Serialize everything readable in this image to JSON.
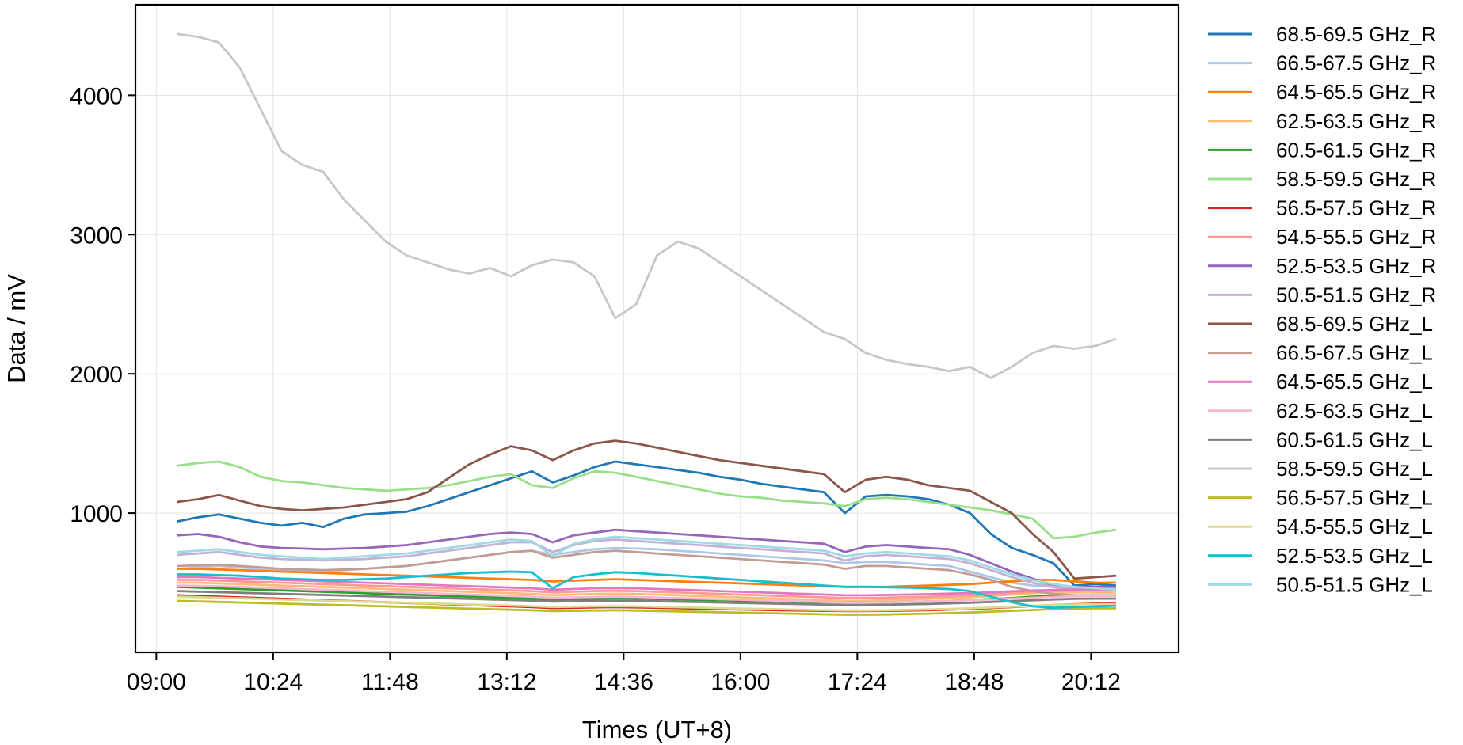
{
  "chart_data": {
    "type": "line",
    "title": "",
    "xlabel": "Times (UT+8)",
    "ylabel": "Data / mV",
    "x_ticks": [
      "09:00",
      "10:24",
      "11:48",
      "13:12",
      "14:36",
      "16:00",
      "17:24",
      "18:48",
      "20:12"
    ],
    "y_ticks": [
      "1000",
      "2000",
      "3000",
      "4000"
    ],
    "y_tick_values": [
      1000,
      2000,
      3000,
      4000
    ],
    "xlim": [
      "08:45",
      "21:15"
    ],
    "ylim": [
      0,
      4650
    ],
    "grid": true,
    "legend": "outside-right",
    "x": [
      "09:15",
      "09:30",
      "09:45",
      "10:00",
      "10:15",
      "10:30",
      "10:45",
      "11:00",
      "11:15",
      "11:30",
      "11:45",
      "12:00",
      "12:15",
      "12:30",
      "12:45",
      "13:00",
      "13:15",
      "13:30",
      "13:45",
      "14:00",
      "14:15",
      "14:30",
      "14:45",
      "15:00",
      "15:15",
      "15:30",
      "15:45",
      "16:00",
      "16:15",
      "16:30",
      "16:45",
      "17:00",
      "17:15",
      "17:30",
      "17:45",
      "18:00",
      "18:15",
      "18:30",
      "18:45",
      "19:00",
      "19:15",
      "19:30",
      "19:45",
      "20:00",
      "20:15",
      "20:30"
    ],
    "series": [
      {
        "name": "68.5-69.5 GHz_R",
        "color": "#1f77b4",
        "values": [
          940,
          970,
          990,
          960,
          930,
          910,
          930,
          900,
          960,
          990,
          1000,
          1010,
          1050,
          1100,
          1150,
          1200,
          1250,
          1300,
          1220,
          1270,
          1330,
          1370,
          1350,
          1330,
          1310,
          1290,
          1260,
          1240,
          1210,
          1190,
          1170,
          1150,
          1000,
          1120,
          1130,
          1120,
          1100,
          1060,
          1000,
          850,
          750,
          700,
          640,
          480,
          490,
          480
        ]
      },
      {
        "name": "66.5-67.5 GHz_R",
        "color": "#aec7e8",
        "values": [
          600,
          610,
          620,
          610,
          600,
          590,
          590,
          580,
          590,
          600,
          610,
          620,
          640,
          660,
          680,
          700,
          720,
          730,
          700,
          720,
          740,
          750,
          745,
          740,
          730,
          720,
          710,
          700,
          690,
          680,
          670,
          660,
          640,
          650,
          650,
          640,
          630,
          620,
          580,
          540,
          500,
          480,
          470,
          440,
          430,
          430
        ]
      },
      {
        "name": "64.5-65.5 GHz_R",
        "color": "#ff7f0e",
        "values": [
          600,
          600,
          595,
          590,
          585,
          580,
          575,
          570,
          565,
          560,
          555,
          550,
          545,
          540,
          535,
          530,
          525,
          520,
          510,
          515,
          520,
          525,
          520,
          515,
          510,
          505,
          500,
          495,
          490,
          485,
          480,
          475,
          470,
          470,
          470,
          475,
          480,
          485,
          490,
          500,
          510,
          520,
          520,
          510,
          500,
          500
        ]
      },
      {
        "name": "62.5-63.5 GHz_R",
        "color": "#ffbb78",
        "values": [
          500,
          500,
          495,
          490,
          485,
          480,
          475,
          470,
          465,
          460,
          455,
          450,
          445,
          440,
          435,
          430,
          425,
          420,
          410,
          415,
          420,
          422,
          420,
          415,
          410,
          405,
          400,
          395,
          390,
          385,
          380,
          375,
          370,
          370,
          375,
          380,
          385,
          390,
          395,
          405,
          415,
          425,
          430,
          430,
          430,
          430
        ]
      },
      {
        "name": "60.5-61.5 GHz_R",
        "color": "#2ca02c",
        "values": [
          470,
          465,
          460,
          455,
          450,
          445,
          440,
          435,
          430,
          425,
          420,
          415,
          410,
          405,
          400,
          395,
          390,
          385,
          380,
          382,
          385,
          388,
          386,
          383,
          380,
          377,
          374,
          371,
          368,
          365,
          362,
          360,
          358,
          358,
          360,
          363,
          366,
          370,
          375,
          382,
          390,
          400,
          405,
          408,
          410,
          410
        ]
      },
      {
        "name": "58.5-59.5 GHz_R",
        "color": "#98df8a",
        "values": [
          1340,
          1360,
          1370,
          1330,
          1260,
          1230,
          1220,
          1200,
          1180,
          1170,
          1160,
          1170,
          1180,
          1200,
          1230,
          1260,
          1280,
          1200,
          1180,
          1250,
          1300,
          1290,
          1260,
          1230,
          1200,
          1170,
          1140,
          1120,
          1110,
          1090,
          1080,
          1070,
          1050,
          1100,
          1110,
          1100,
          1080,
          1060,
          1040,
          1020,
          990,
          960,
          820,
          830,
          860,
          880
        ]
      },
      {
        "name": "56.5-57.5 GHz_R",
        "color": "#d62728",
        "values": [
          410,
          405,
          400,
          395,
          390,
          385,
          380,
          375,
          370,
          365,
          360,
          355,
          350,
          345,
          340,
          335,
          330,
          325,
          318,
          320,
          323,
          325,
          323,
          320,
          317,
          314,
          311,
          308,
          305,
          302,
          300,
          298,
          296,
          296,
          298,
          300,
          303,
          307,
          312,
          318,
          325,
          333,
          340,
          345,
          350,
          350
        ]
      },
      {
        "name": "54.5-55.5 GHz_R",
        "color": "#ff9896",
        "values": [
          520,
          520,
          515,
          510,
          505,
          500,
          495,
          490,
          485,
          480,
          475,
          470,
          465,
          460,
          455,
          450,
          445,
          440,
          430,
          435,
          440,
          442,
          440,
          435,
          430,
          425,
          420,
          415,
          410,
          405,
          400,
          395,
          390,
          390,
          393,
          396,
          400,
          405,
          410,
          418,
          426,
          434,
          440,
          444,
          446,
          446
        ]
      },
      {
        "name": "52.5-53.5 GHz_R",
        "color": "#9467bd",
        "values": [
          840,
          850,
          830,
          790,
          760,
          750,
          745,
          740,
          745,
          750,
          760,
          770,
          790,
          810,
          830,
          850,
          860,
          850,
          790,
          840,
          860,
          880,
          870,
          860,
          850,
          840,
          830,
          820,
          810,
          800,
          790,
          780,
          720,
          760,
          770,
          760,
          750,
          740,
          700,
          640,
          580,
          530,
          480,
          470,
          470,
          470
        ]
      },
      {
        "name": "50.5-51.5 GHz_R",
        "color": "#c5b0d5",
        "values": [
          700,
          710,
          720,
          700,
          680,
          670,
          665,
          660,
          665,
          670,
          680,
          690,
          710,
          730,
          750,
          770,
          790,
          790,
          720,
          770,
          800,
          810,
          800,
          790,
          780,
          770,
          760,
          750,
          740,
          730,
          720,
          710,
          660,
          690,
          700,
          690,
          680,
          670,
          640,
          590,
          540,
          500,
          470,
          460,
          455,
          455
        ]
      },
      {
        "name": "68.5-69.5 GHz_L",
        "color": "#8c564b",
        "values": [
          1080,
          1100,
          1130,
          1090,
          1050,
          1030,
          1020,
          1030,
          1040,
          1060,
          1080,
          1100,
          1150,
          1250,
          1350,
          1420,
          1480,
          1450,
          1380,
          1450,
          1500,
          1520,
          1500,
          1470,
          1440,
          1410,
          1380,
          1360,
          1340,
          1320,
          1300,
          1280,
          1150,
          1240,
          1260,
          1240,
          1200,
          1180,
          1160,
          1080,
          1000,
          850,
          720,
          530,
          540,
          550
        ]
      },
      {
        "name": "66.5-67.5 GHz_L",
        "color": "#c49c94",
        "values": [
          620,
          625,
          630,
          620,
          610,
          600,
          595,
          590,
          595,
          600,
          610,
          620,
          640,
          660,
          680,
          700,
          720,
          730,
          680,
          700,
          720,
          730,
          720,
          710,
          700,
          690,
          680,
          670,
          660,
          650,
          640,
          630,
          600,
          620,
          620,
          610,
          600,
          590,
          560,
          520,
          470,
          440,
          420,
          410,
          410,
          410
        ]
      },
      {
        "name": "64.5-65.5 GHz_L",
        "color": "#e377c2",
        "values": [
          540,
          540,
          535,
          530,
          525,
          520,
          515,
          510,
          505,
          500,
          495,
          490,
          485,
          480,
          475,
          470,
          465,
          460,
          450,
          455,
          460,
          462,
          460,
          455,
          450,
          445,
          440,
          435,
          430,
          425,
          420,
          415,
          410,
          410,
          412,
          415,
          418,
          422,
          426,
          432,
          438,
          444,
          448,
          450,
          450,
          450
        ]
      },
      {
        "name": "62.5-63.5 GHz_L",
        "color": "#f7b6d2",
        "values": [
          480,
          478,
          475,
          470,
          465,
          460,
          455,
          450,
          445,
          440,
          435,
          430,
          425,
          420,
          415,
          410,
          405,
          400,
          392,
          395,
          398,
          400,
          398,
          394,
          390,
          386,
          382,
          378,
          374,
          370,
          366,
          362,
          358,
          358,
          360,
          363,
          366,
          370,
          374,
          380,
          386,
          392,
          398,
          402,
          405,
          405
        ]
      },
      {
        "name": "60.5-61.5 GHz_L",
        "color": "#7f7f7f",
        "values": [
          440,
          436,
          432,
          428,
          424,
          420,
          416,
          412,
          408,
          404,
          400,
          396,
          392,
          388,
          384,
          380,
          376,
          372,
          365,
          367,
          370,
          372,
          370,
          367,
          364,
          361,
          358,
          355,
          352,
          349,
          346,
          343,
          340,
          340,
          342,
          345,
          348,
          352,
          356,
          362,
          368,
          374,
          380,
          384,
          386,
          386
        ]
      },
      {
        "name": "58.5-59.5 GHz_L",
        "color": "#c7c7c7",
        "values": [
          4440,
          4420,
          4380,
          4200,
          3900,
          3600,
          3500,
          3450,
          3250,
          3100,
          2950,
          2850,
          2800,
          2750,
          2720,
          2760,
          2700,
          2780,
          2820,
          2800,
          2700,
          2400,
          2500,
          2850,
          2950,
          2900,
          2800,
          2700,
          2600,
          2500,
          2400,
          2300,
          2250,
          2150,
          2100,
          2070,
          2050,
          2020,
          2050,
          1970,
          2050,
          2150,
          2200,
          2180,
          2200,
          2250
        ]
      },
      {
        "name": "56.5-57.5 GHz_L",
        "color": "#bcbd22",
        "values": [
          370,
          366,
          362,
          358,
          354,
          350,
          346,
          342,
          338,
          334,
          330,
          326,
          322,
          318,
          314,
          310,
          306,
          302,
          296,
          298,
          300,
          302,
          300,
          297,
          294,
          291,
          288,
          285,
          282,
          279,
          276,
          273,
          270,
          270,
          272,
          275,
          278,
          282,
          286,
          292,
          298,
          304,
          310,
          314,
          316,
          316
        ]
      },
      {
        "name": "54.5-55.5 GHz_L",
        "color": "#dbdb8d",
        "values": [
          400,
          396,
          392,
          388,
          384,
          380,
          376,
          372,
          368,
          364,
          360,
          356,
          352,
          348,
          344,
          340,
          336,
          332,
          326,
          328,
          330,
          332,
          330,
          327,
          324,
          321,
          318,
          315,
          312,
          309,
          306,
          303,
          300,
          300,
          302,
          305,
          308,
          312,
          316,
          322,
          328,
          334,
          340,
          344,
          346,
          346
        ]
      },
      {
        "name": "52.5-53.5 GHz_L",
        "color": "#17becf",
        "values": [
          560,
          560,
          555,
          550,
          540,
          530,
          525,
          520,
          520,
          525,
          530,
          540,
          550,
          560,
          570,
          575,
          580,
          575,
          460,
          540,
          560,
          575,
          570,
          560,
          550,
          540,
          530,
          520,
          510,
          500,
          490,
          480,
          470,
          470,
          468,
          465,
          460,
          455,
          440,
          400,
          360,
          330,
          320,
          325,
          330,
          335
        ]
      },
      {
        "name": "50.5-51.5 GHz_L",
        "color": "#9edae5",
        "values": [
          720,
          730,
          740,
          720,
          700,
          690,
          680,
          670,
          680,
          690,
          700,
          710,
          730,
          750,
          770,
          790,
          810,
          800,
          690,
          780,
          810,
          830,
          820,
          810,
          800,
          790,
          780,
          770,
          760,
          750,
          740,
          730,
          690,
          710,
          720,
          710,
          700,
          690,
          660,
          610,
          560,
          520,
          490,
          470,
          460,
          450
        ]
      }
    ]
  }
}
